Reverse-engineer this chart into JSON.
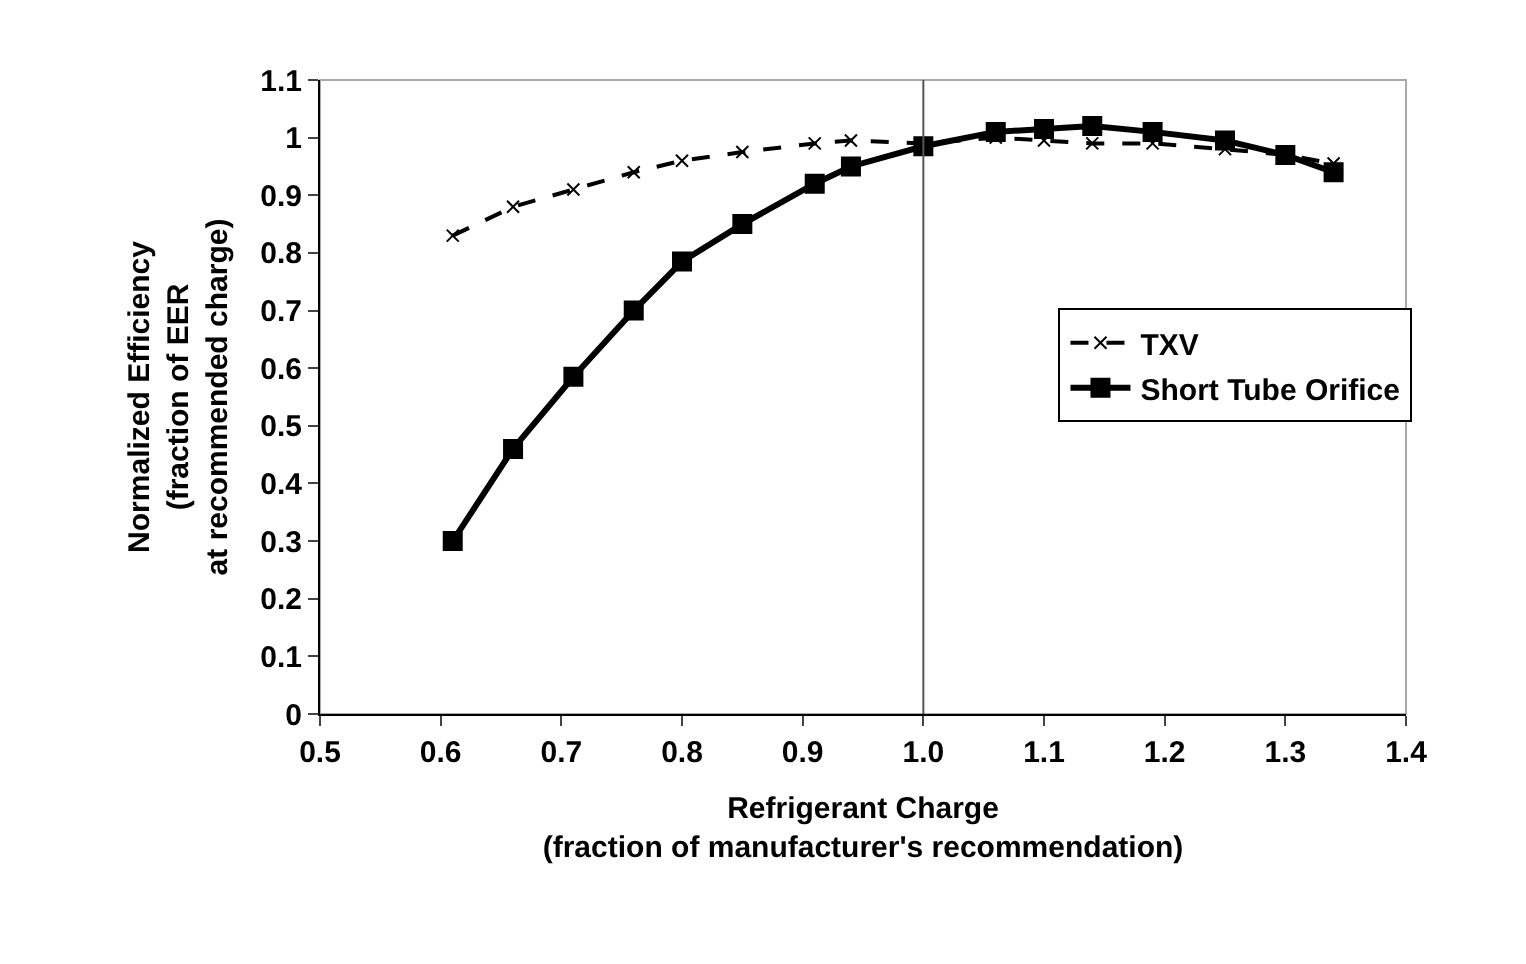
{
  "chart_data": {
    "type": "line",
    "xlabel": "Refrigerant Charge\n(fraction of manufacturer's recommendation)",
    "ylabel": "Normalized Efficiency\n(fraction of EER\nat recommended charge)",
    "x": [
      0.61,
      0.66,
      0.71,
      0.76,
      0.8,
      0.85,
      0.91,
      0.94,
      1.0,
      1.06,
      1.1,
      1.14,
      1.19,
      1.25,
      1.3,
      1.34
    ],
    "series": [
      {
        "name": "TXV",
        "color": "#000000",
        "marker": "cross",
        "line_style": "dashed",
        "values": [
          0.83,
          0.88,
          0.91,
          0.94,
          0.96,
          0.975,
          0.99,
          0.995,
          0.99,
          1.0,
          0.995,
          0.99,
          0.99,
          0.98,
          0.97,
          0.955
        ]
      },
      {
        "name": "Short Tube Orifice",
        "color": "#000000",
        "marker": "square",
        "line_style": "solid",
        "values": [
          0.3,
          0.46,
          0.585,
          0.7,
          0.785,
          0.85,
          0.92,
          0.95,
          0.985,
          1.01,
          1.015,
          1.02,
          1.01,
          0.995,
          0.97,
          0.94
        ]
      }
    ],
    "xlim": [
      0.5,
      1.4
    ],
    "xticks": [
      0.5,
      0.6,
      0.7,
      0.8,
      0.9,
      {
        "value": 1.0,
        "label": "1.0"
      },
      1.1,
      1.2,
      1.3,
      1.4
    ],
    "ylim": [
      0,
      1.1
    ],
    "yticks": [
      0,
      0.1,
      0.2,
      0.3,
      0.4,
      0.5,
      0.6,
      0.7,
      0.8,
      0.9,
      1,
      1.1
    ],
    "ref_lines": [
      {
        "axis": "x",
        "value": 1.0,
        "color": "#555555"
      }
    ],
    "grid": false,
    "legend": "right"
  }
}
